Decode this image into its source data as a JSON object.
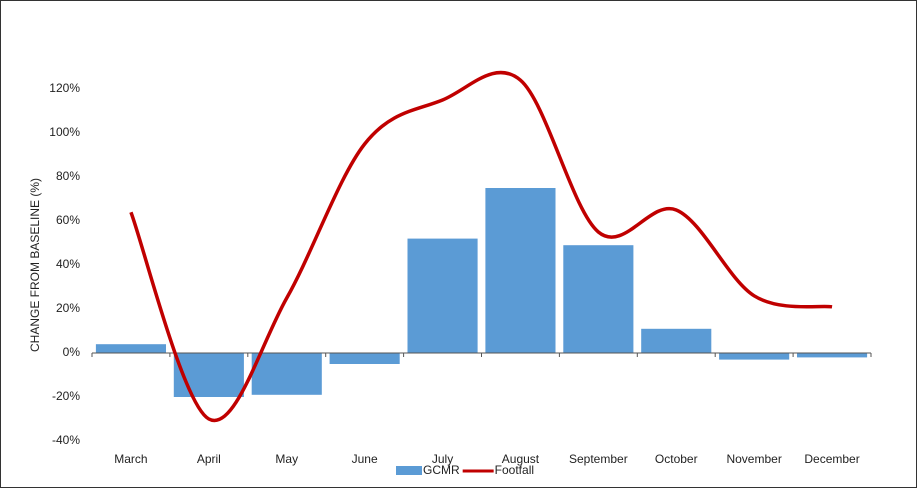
{
  "chart_data": {
    "type": "bar_line",
    "y_label": "CHANGE FROM BASELINE (%)",
    "categories": [
      "March",
      "April",
      "May",
      "June",
      "July",
      "August",
      "September",
      "October",
      "November",
      "December"
    ],
    "series": [
      {
        "name": "GCMR",
        "type": "bar",
        "color": "#5b9bd5",
        "values": [
          4,
          -20,
          -19,
          -5,
          52,
          75,
          49,
          11,
          -3,
          -2
        ]
      },
      {
        "name": "Footfall",
        "type": "line",
        "color": "#c00000",
        "values": [
          64,
          -30,
          25,
          95,
          115,
          124,
          55,
          65,
          26,
          21
        ]
      }
    ],
    "ylim": [
      -40,
      120
    ],
    "yticks": [
      {
        "value": -40,
        "label": "-40%"
      },
      {
        "value": -20,
        "label": "-20%"
      },
      {
        "value": 0,
        "label": "0%"
      },
      {
        "value": 20,
        "label": "20%"
      },
      {
        "value": 40,
        "label": "40%"
      },
      {
        "value": 60,
        "label": "60%"
      },
      {
        "value": 80,
        "label": "80%"
      },
      {
        "value": 100,
        "label": "100%"
      },
      {
        "value": 120,
        "label": "120%"
      }
    ],
    "legend": "bottom"
  }
}
